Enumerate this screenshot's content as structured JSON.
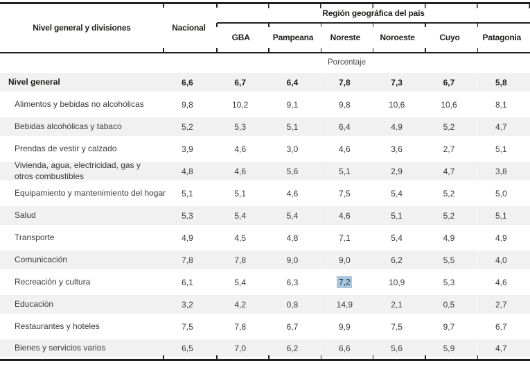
{
  "table": {
    "header": {
      "left_label": "Nivel general y divisiones",
      "nacional_label": "Nacional",
      "region_group_label": "Región geográfica del país",
      "regions": [
        "GBA",
        "Pampeana",
        "Noreste",
        "Noroeste",
        "Cuyo",
        "Patagonia"
      ],
      "unit_label": "Porcentaje"
    },
    "rows": [
      {
        "label": "Nivel general",
        "bold": true,
        "values": [
          "6,6",
          "6,7",
          "6,4",
          "7,8",
          "7,3",
          "6,7",
          "5,8"
        ]
      },
      {
        "label": "Alimentos y bebidas no alcohólicas",
        "bold": false,
        "values": [
          "9,8",
          "10,2",
          "9,1",
          "9,8",
          "10,6",
          "10,6",
          "8,1"
        ]
      },
      {
        "label": "Bebidas alcohólicas y tabaco",
        "bold": false,
        "values": [
          "5,2",
          "5,3",
          "5,1",
          "6,4",
          "4,9",
          "5,2",
          "4,7"
        ]
      },
      {
        "label": "Prendas de vestir y calzado",
        "bold": false,
        "values": [
          "3,9",
          "4,6",
          "3,0",
          "4,6",
          "3,6",
          "2,7",
          "5,1"
        ]
      },
      {
        "label": "Vivienda, agua, electricidad, gas y otros combustibles",
        "bold": false,
        "values": [
          "4,8",
          "4,6",
          "5,6",
          "5,1",
          "2,9",
          "4,7",
          "3,8"
        ]
      },
      {
        "label": "Equipamiento y mantenimiento del hogar",
        "bold": false,
        "values": [
          "5,1",
          "5,1",
          "4,6",
          "7,5",
          "5,4",
          "5,2",
          "5,0"
        ]
      },
      {
        "label": "Salud",
        "bold": false,
        "values": [
          "5,3",
          "5,4",
          "5,4",
          "4,6",
          "5,1",
          "5,2",
          "5,1"
        ]
      },
      {
        "label": "Transporte",
        "bold": false,
        "values": [
          "4,9",
          "4,5",
          "4,8",
          "7,1",
          "5,4",
          "4,9",
          "4,9"
        ]
      },
      {
        "label": "Comunicación",
        "bold": false,
        "values": [
          "7,8",
          "7,8",
          "9,0",
          "9,0",
          "6,2",
          "5,5",
          "4,0"
        ]
      },
      {
        "label": "Recreación y cultura",
        "bold": false,
        "values": [
          "6,1",
          "5,4",
          "6,3",
          "7,2",
          "10,9",
          "5,3",
          "4,6"
        ],
        "highlight_col": 3
      },
      {
        "label": "Educación",
        "bold": false,
        "values": [
          "3,2",
          "4,2",
          "0,8",
          "14,9",
          "2,1",
          "0,5",
          "2,7"
        ]
      },
      {
        "label": "Restaurantes y hoteles",
        "bold": false,
        "values": [
          "7,5",
          "7,8",
          "6,7",
          "9,9",
          "7,5",
          "9,7",
          "6,7"
        ]
      },
      {
        "label": "Bienes y servicios varios",
        "bold": false,
        "values": [
          "6,5",
          "7,0",
          "6,2",
          "6,6",
          "5,6",
          "5,9",
          "4,7"
        ]
      }
    ],
    "colors": {
      "rule": "#231f20",
      "text": "#3a3a3a",
      "bold_text": "#1d1d1b",
      "row_stripe": "#f1f1f1",
      "selection_highlight": "#a9c7dd"
    }
  }
}
